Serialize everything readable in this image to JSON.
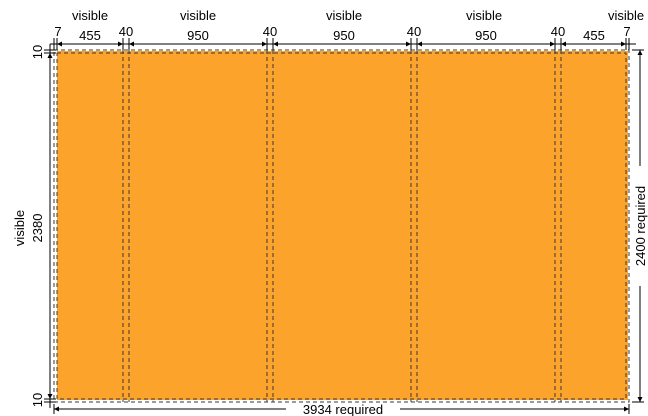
{
  "colors": {
    "panel_fill": "#FBA32A",
    "line": "#000000",
    "background": "#FFFFFF"
  },
  "top_labels": {
    "visible_1": "visible",
    "visible_2": "visible",
    "visible_3": "visible",
    "visible_4": "visible",
    "visible_5": "visible"
  },
  "top_widths": {
    "w_7_left": "7",
    "w_455_left": "455",
    "w_40_1": "40",
    "w_950_1": "950",
    "w_40_2": "40",
    "w_950_2": "950",
    "w_40_3": "40",
    "w_950_3": "950",
    "w_40_4": "40",
    "w_455_right": "455",
    "w_7_right": "7"
  },
  "left_labels": {
    "top_margin": "10",
    "visible": "visible",
    "visible_height": "2380",
    "bottom_margin": "10"
  },
  "right_label": "2400 required",
  "bottom_label": "3934 required"
}
